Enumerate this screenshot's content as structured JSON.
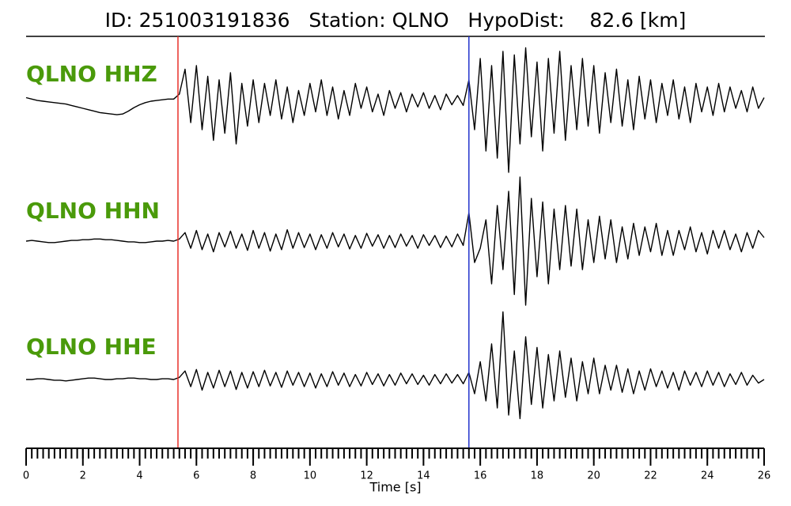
{
  "chart_data": {
    "type": "seismogram",
    "title": "ID: 251003191836   Station: QLNO   HypoDist:    82.6 [km]",
    "xlabel": "Time [s]",
    "xlim": [
      0,
      26
    ],
    "ylim": [
      -1,
      1
    ],
    "xticks": [
      0,
      2,
      4,
      6,
      8,
      10,
      12,
      14,
      16,
      18,
      20,
      22,
      24,
      26
    ],
    "xminorticks": [
      0,
      0.2,
      0.4,
      0.6,
      0.8,
      1,
      1.2,
      1.4,
      1.6,
      1.8,
      2,
      2.2,
      2.4,
      2.6,
      2.8,
      3,
      3.2,
      3.4,
      3.6,
      3.8,
      4,
      4.2,
      4.4,
      4.6,
      4.8,
      5,
      5.2,
      5.4,
      5.6,
      5.8,
      6,
      6.2,
      6.4,
      6.6,
      6.8,
      7,
      7.2,
      7.4,
      7.6,
      7.8,
      8,
      8.2,
      8.4,
      8.6,
      8.8,
      9,
      9.2,
      9.4,
      9.6,
      9.8,
      10,
      10.2,
      10.4,
      10.6,
      10.8,
      11,
      11.2,
      11.4,
      11.6,
      11.8,
      12,
      12.2,
      12.4,
      12.6,
      12.8,
      13,
      13.2,
      13.4,
      13.6,
      13.8,
      14,
      14.2,
      14.4,
      14.6,
      14.8,
      15,
      15.2,
      15.4,
      15.6,
      15.8,
      16,
      16.2,
      16.4,
      16.6,
      16.8,
      17,
      17.2,
      17.4,
      17.6,
      17.8,
      18,
      18.2,
      18.4,
      18.6,
      18.8,
      19,
      19.2,
      19.4,
      19.6,
      19.8,
      20,
      20.2,
      20.4,
      20.6,
      20.8,
      21,
      21.2,
      21.4,
      21.6,
      21.8,
      22,
      22.2,
      22.4,
      22.6,
      22.8,
      23,
      23.2,
      23.4,
      23.6,
      23.8,
      24,
      24.2,
      24.4,
      24.6,
      24.8,
      25,
      25.2,
      25.4,
      25.6,
      25.8,
      26
    ],
    "x": [
      0,
      0.2,
      0.4,
      0.6,
      0.8,
      1,
      1.2,
      1.4,
      1.6,
      1.8,
      2,
      2.2,
      2.4,
      2.6,
      2.8,
      3,
      3.2,
      3.4,
      3.6,
      3.8,
      4,
      4.2,
      4.4,
      4.6,
      4.8,
      5,
      5.2,
      5.4,
      5.6,
      5.8,
      6,
      6.2,
      6.4,
      6.6,
      6.8,
      7,
      7.2,
      7.4,
      7.6,
      7.8,
      8,
      8.2,
      8.4,
      8.6,
      8.8,
      9,
      9.2,
      9.4,
      9.6,
      9.8,
      10,
      10.2,
      10.4,
      10.6,
      10.8,
      11,
      11.2,
      11.4,
      11.6,
      11.8,
      12,
      12.2,
      12.4,
      12.6,
      12.8,
      13,
      13.2,
      13.4,
      13.6,
      13.8,
      14,
      14.2,
      14.4,
      14.6,
      14.8,
      15,
      15.2,
      15.4,
      15.6,
      15.8,
      16,
      16.2,
      16.4,
      16.6,
      16.8,
      17,
      17.2,
      17.4,
      17.6,
      17.8,
      18,
      18.2,
      18.4,
      18.6,
      18.8,
      19,
      19.2,
      19.4,
      19.6,
      19.8,
      20,
      20.2,
      20.4,
      20.6,
      20.8,
      21,
      21.2,
      21.4,
      21.6,
      21.8,
      22,
      22.2,
      22.4,
      22.6,
      22.8,
      23,
      23.2,
      23.4,
      23.6,
      23.8,
      24,
      24.2,
      24.4,
      24.6,
      24.8,
      25,
      25.2,
      25.4,
      25.6,
      25.8,
      26
    ],
    "picks": [
      {
        "x": 5.35,
        "color": "#e8302a"
      },
      {
        "x": 15.6,
        "color": "#2233cc"
      }
    ],
    "label_color": "#4a9a0a",
    "series": [
      {
        "name": "QLNO HHZ",
        "color": "#000000",
        "values": [
          0.05,
          0.03,
          0.01,
          0,
          -0.01,
          -0.02,
          -0.03,
          -0.04,
          -0.06,
          -0.08,
          -0.1,
          -0.12,
          -0.14,
          -0.16,
          -0.17,
          -0.18,
          -0.19,
          -0.18,
          -0.14,
          -0.09,
          -0.05,
          -0.02,
          0,
          0.01,
          0.02,
          0.03,
          0.03,
          0.1,
          0.45,
          -0.3,
          0.5,
          -0.4,
          0.35,
          -0.55,
          0.3,
          -0.45,
          0.4,
          -0.6,
          0.25,
          -0.35,
          0.3,
          -0.3,
          0.25,
          -0.2,
          0.3,
          -0.25,
          0.2,
          -0.3,
          0.15,
          -0.2,
          0.25,
          -0.15,
          0.3,
          -0.2,
          0.2,
          -0.25,
          0.15,
          -0.2,
          0.25,
          -0.1,
          0.2,
          -0.15,
          0.1,
          -0.2,
          0.15,
          -0.1,
          0.12,
          -0.15,
          0.1,
          -0.08,
          0.12,
          -0.1,
          0.08,
          -0.12,
          0.1,
          -0.05,
          0.08,
          -0.06,
          0.3,
          -0.4,
          0.6,
          -0.7,
          0.5,
          -0.8,
          0.7,
          -1.0,
          0.65,
          -0.6,
          0.75,
          -0.5,
          0.55,
          -0.7,
          0.6,
          -0.45,
          0.7,
          -0.55,
          0.5,
          -0.4,
          0.6,
          -0.35,
          0.5,
          -0.45,
          0.4,
          -0.3,
          0.45,
          -0.35,
          0.3,
          -0.4,
          0.35,
          -0.25,
          0.3,
          -0.3,
          0.25,
          -0.2,
          0.3,
          -0.25,
          0.2,
          -0.3,
          0.25,
          -0.15,
          0.2,
          -0.2,
          0.25,
          -0.15,
          0.2,
          -0.1,
          0.15,
          -0.15,
          0.2,
          -0.1,
          0.05
        ]
      },
      {
        "name": "QLNO HHN",
        "color": "#000000",
        "values": [
          0,
          0.01,
          0,
          -0.01,
          -0.02,
          -0.02,
          -0.01,
          0,
          0.01,
          0.01,
          0.02,
          0.02,
          0.03,
          0.03,
          0.02,
          0.02,
          0.01,
          0,
          -0.01,
          -0.01,
          -0.02,
          -0.02,
          -0.01,
          0,
          0,
          0.01,
          0,
          0.03,
          0.12,
          -0.1,
          0.15,
          -0.12,
          0.1,
          -0.15,
          0.12,
          -0.08,
          0.14,
          -0.1,
          0.1,
          -0.13,
          0.15,
          -0.1,
          0.12,
          -0.14,
          0.1,
          -0.12,
          0.16,
          -0.1,
          0.12,
          -0.09,
          0.1,
          -0.12,
          0.09,
          -0.1,
          0.12,
          -0.08,
          0.1,
          -0.11,
          0.08,
          -0.1,
          0.11,
          -0.07,
          0.09,
          -0.1,
          0.08,
          -0.09,
          0.1,
          -0.07,
          0.08,
          -0.1,
          0.09,
          -0.06,
          0.08,
          -0.09,
          0.07,
          -0.08,
          0.1,
          -0.06,
          0.4,
          -0.3,
          -0.1,
          0.3,
          -0.6,
          0.5,
          -0.4,
          0.7,
          -0.75,
          0.9,
          -0.9,
          0.6,
          -0.5,
          0.55,
          -0.6,
          0.45,
          -0.4,
          0.5,
          -0.35,
          0.45,
          -0.4,
          0.3,
          -0.3,
          0.35,
          -0.25,
          0.3,
          -0.3,
          0.2,
          -0.25,
          0.25,
          -0.2,
          0.2,
          -0.15,
          0.25,
          -0.2,
          0.15,
          -0.2,
          0.15,
          -0.12,
          0.2,
          -0.15,
          0.12,
          -0.18,
          0.15,
          -0.1,
          0.15,
          -0.12,
          0.1,
          -0.15,
          0.12,
          -0.1,
          0.15,
          0.05
        ]
      },
      {
        "name": "QLNO HHE",
        "color": "#000000",
        "values": [
          0,
          0,
          0.01,
          0.01,
          0,
          -0.01,
          -0.01,
          -0.02,
          -0.01,
          0,
          0.01,
          0.02,
          0.02,
          0.01,
          0,
          0,
          0.01,
          0.01,
          0.02,
          0.02,
          0.01,
          0.01,
          0,
          0,
          0.01,
          0.01,
          0,
          0.03,
          0.12,
          -0.1,
          0.14,
          -0.15,
          0.1,
          -0.12,
          0.13,
          -0.1,
          0.12,
          -0.14,
          0.1,
          -0.12,
          0.11,
          -0.1,
          0.13,
          -0.09,
          0.1,
          -0.11,
          0.12,
          -0.08,
          0.1,
          -0.1,
          0.09,
          -0.12,
          0.08,
          -0.1,
          0.11,
          -0.08,
          0.09,
          -0.1,
          0.07,
          -0.09,
          0.1,
          -0.07,
          0.08,
          -0.09,
          0.07,
          -0.08,
          0.09,
          -0.06,
          0.08,
          -0.07,
          0.06,
          -0.08,
          0.07,
          -0.06,
          0.08,
          -0.05,
          0.07,
          -0.06,
          0.1,
          -0.2,
          0.25,
          -0.3,
          0.5,
          -0.4,
          0.95,
          -0.5,
          0.4,
          -0.55,
          0.6,
          -0.35,
          0.45,
          -0.4,
          0.35,
          -0.3,
          0.4,
          -0.25,
          0.3,
          -0.3,
          0.25,
          -0.2,
          0.3,
          -0.2,
          0.2,
          -0.15,
          0.2,
          -0.18,
          0.15,
          -0.2,
          0.12,
          -0.15,
          0.15,
          -0.1,
          0.12,
          -0.12,
          0.1,
          -0.15,
          0.12,
          -0.08,
          0.1,
          -0.1,
          0.12,
          -0.08,
          0.1,
          -0.1,
          0.08,
          -0.07,
          0.1,
          -0.08,
          0.06,
          -0.05,
          0
        ]
      }
    ]
  }
}
